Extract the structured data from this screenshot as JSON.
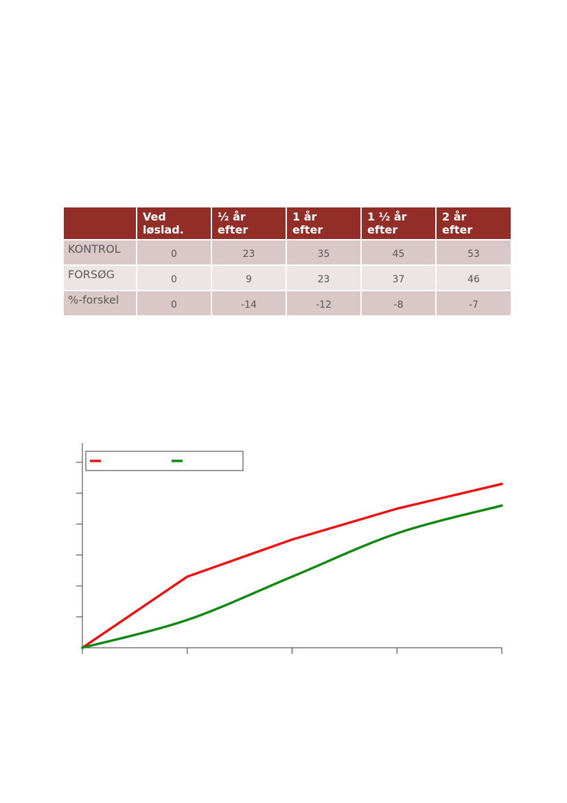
{
  "table": {
    "headers": [
      "",
      "Ved løslad.",
      "½ år efter",
      "1 år efter",
      "1 ½ år efter",
      "2 år efter"
    ],
    "header_lines": [
      [],
      [
        "Ved",
        "løslad."
      ],
      [
        "½ år",
        "efter"
      ],
      [
        "1 år",
        "efter"
      ],
      [
        "1 ½ år",
        "efter"
      ],
      [
        "2 år",
        "efter"
      ]
    ],
    "rows": [
      {
        "label": "KONTROL",
        "values": [
          "0",
          "23",
          "35",
          "45",
          "53"
        ]
      },
      {
        "label": "FORSØG",
        "values": [
          "0",
          "9",
          "23",
          "37",
          "46"
        ]
      },
      {
        "label": "%-forskel",
        "values": [
          "0",
          "-14",
          "-12",
          "-8",
          "-7"
        ]
      }
    ],
    "colors": {
      "header_bg": "#922e27",
      "row_dark": "#dac8c8",
      "row_light": "#ede4e4"
    }
  },
  "chart_data": {
    "type": "line",
    "x": [
      0,
      0.5,
      1,
      1.5,
      2
    ],
    "xlim": [
      0,
      2
    ],
    "ylim": [
      0,
      60
    ],
    "y_ticks": [
      0,
      10,
      20,
      30,
      40,
      50,
      60
    ],
    "x_ticks": [
      0,
      0.5,
      1,
      1.5,
      2
    ],
    "tick_labels_visible": false,
    "legend": {
      "position": "top-left",
      "labels_visible": false
    },
    "series": [
      {
        "values": [
          0,
          23,
          35,
          45,
          53
        ],
        "color": "#ee1111",
        "smooth": false
      },
      {
        "values": [
          0,
          9,
          23,
          37,
          46
        ],
        "color": "#118811",
        "smooth": true
      }
    ]
  }
}
